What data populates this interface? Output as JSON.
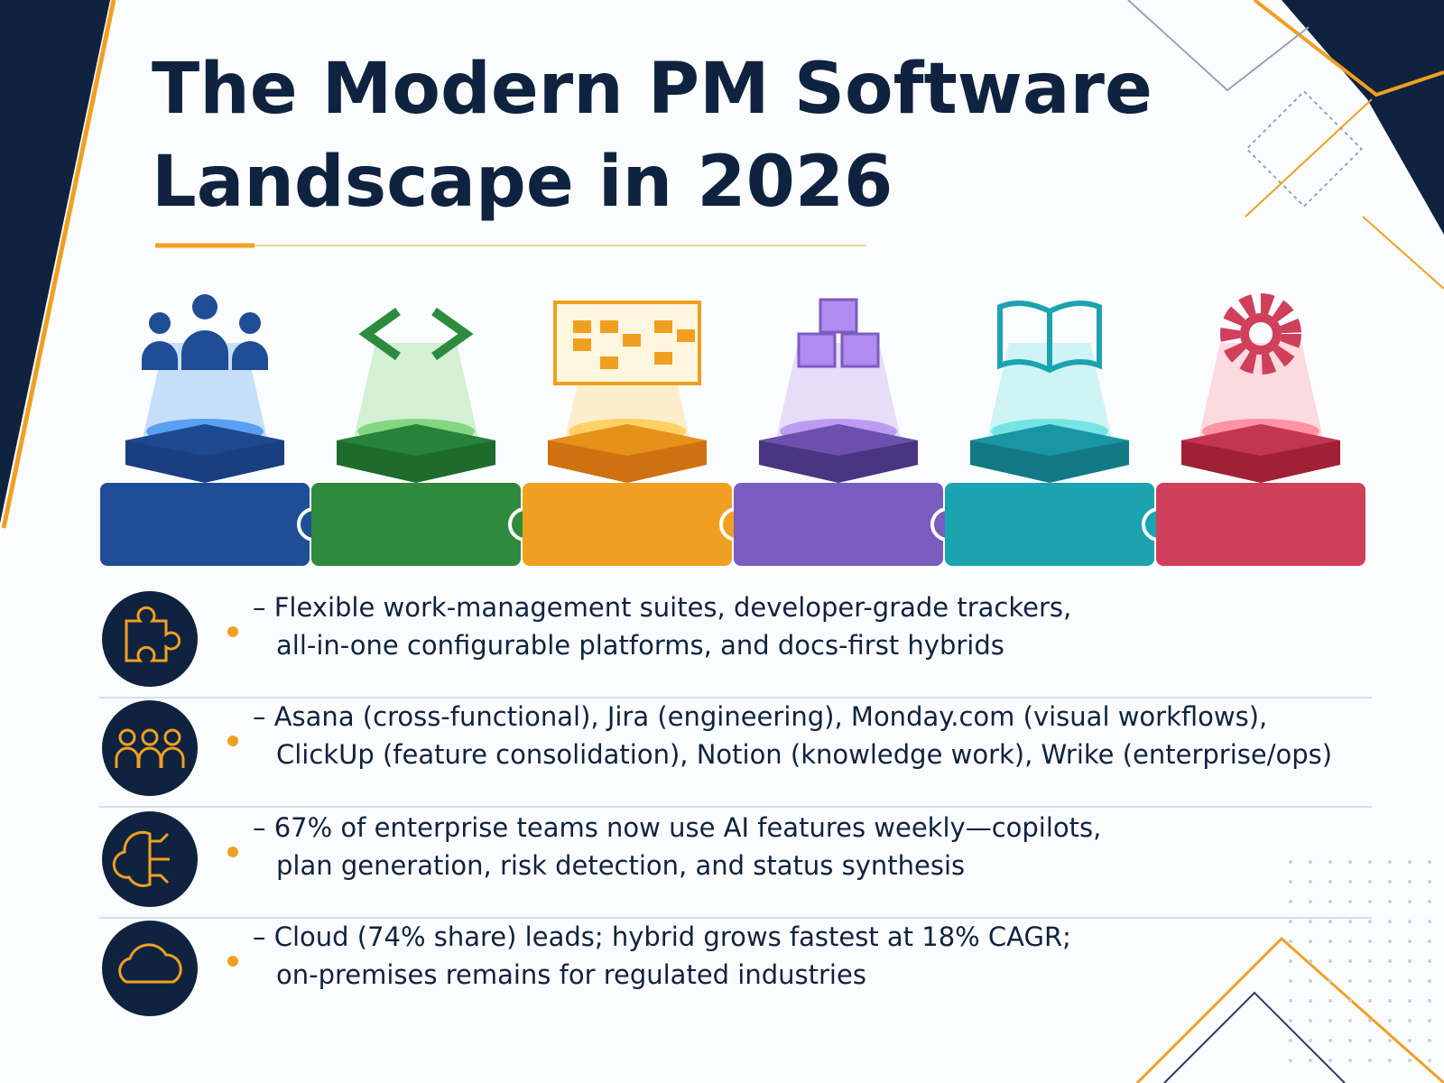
{
  "title": [
    "The Modern PM Software",
    "Landscape in 2026"
  ],
  "rows": [
    {
      "lines": [
        "– Flexible work-management suites, developer-grade trackers,",
        "all-in-one configurable platforms, and docs-first hybrids"
      ]
    },
    {
      "lines": [
        "– Asana (cross-functional), Jira (engineering), Monday.com (visual workflows),",
        "ClickUp (feature consolidation), Notion (knowledge work), Wrike (enterprise/ops)"
      ]
    },
    {
      "lines": [
        "– 67% of enterprise teams now use AI features weekly—copilots,",
        "plan generation, risk detection, and status synthesis"
      ]
    },
    {
      "lines": [
        "– Cloud (74% share) leads; hybrid grows fastest at 18% CAGR;",
        "on-premises remains for regulated industries"
      ]
    }
  ]
}
